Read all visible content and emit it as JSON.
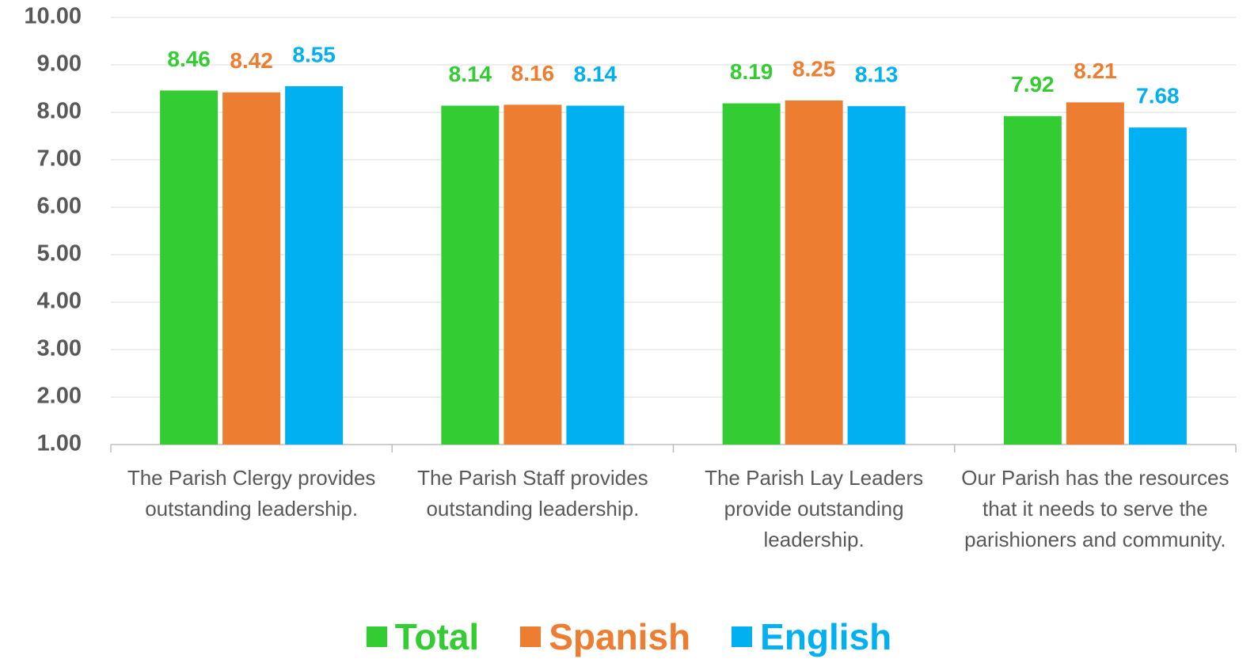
{
  "chart_data": {
    "type": "bar",
    "categories": [
      "The Parish Clergy provides outstanding leadership.",
      "The Parish Staff provides outstanding leadership.",
      "The Parish Lay Leaders provide outstanding leadership.",
      "Our Parish has the resources that it needs to serve the parishioners and community."
    ],
    "series": [
      {
        "name": "Total",
        "color": "#33cc33",
        "values": [
          8.46,
          8.14,
          8.19,
          7.92
        ]
      },
      {
        "name": "Spanish",
        "color": "#ed7d31",
        "values": [
          8.42,
          8.16,
          8.25,
          8.21
        ]
      },
      {
        "name": "English",
        "color": "#00b0f0",
        "values": [
          8.55,
          8.14,
          8.13,
          7.68
        ]
      }
    ],
    "ylim": [
      1,
      10
    ],
    "yticks": [
      {
        "value": 1,
        "label": "1.00"
      },
      {
        "value": 2,
        "label": "2.00"
      },
      {
        "value": 3,
        "label": "3.00"
      },
      {
        "value": 4,
        "label": "4.00"
      },
      {
        "value": 5,
        "label": "5.00"
      },
      {
        "value": 6,
        "label": "6.00"
      },
      {
        "value": 7,
        "label": "7.00"
      },
      {
        "value": 8,
        "label": "8.00"
      },
      {
        "value": 9,
        "label": "9.00"
      },
      {
        "value": 10,
        "label": "10.00"
      }
    ],
    "grid": true,
    "legend": "bottom"
  }
}
